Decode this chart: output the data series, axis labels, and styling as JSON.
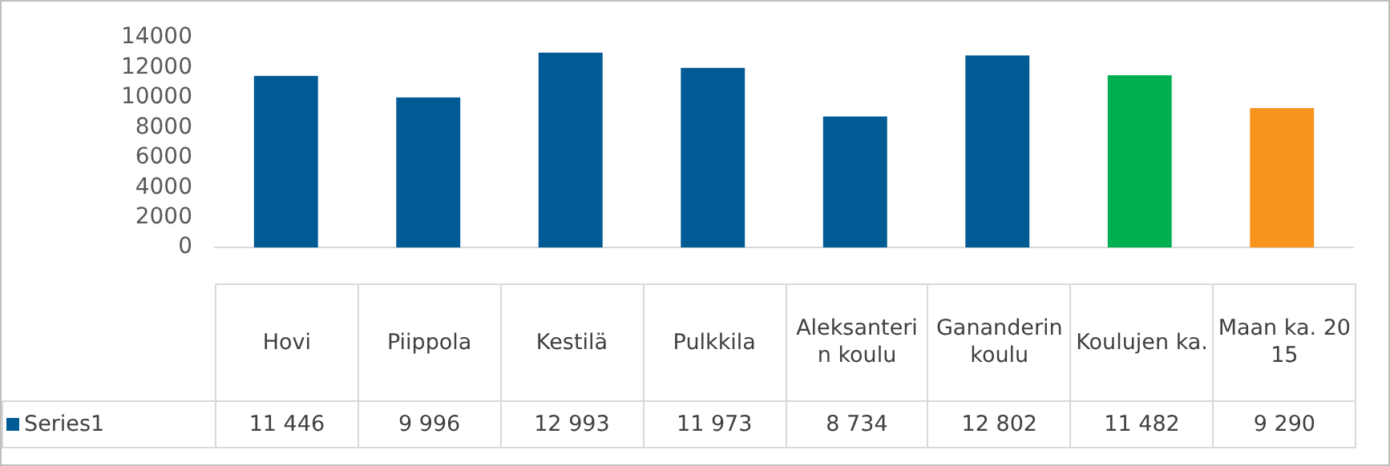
{
  "chart_data": {
    "type": "bar",
    "categories": [
      "Hovi",
      "Piippola",
      "Kestilä",
      "Pulkkila",
      "Aleksanterin koulu",
      "Gananderin koulu",
      "Koulujen ka.",
      "Maan ka. 2015"
    ],
    "series": [
      {
        "name": "Series1",
        "color": "#005a94",
        "colors": [
          "#005a94",
          "#005a94",
          "#005a94",
          "#005a94",
          "#005a94",
          "#005a94",
          "#00b050",
          "#f7941d"
        ],
        "values": [
          11446,
          9996,
          12993,
          11973,
          8734,
          12802,
          11482,
          9290
        ],
        "value_labels": [
          "11 446",
          "9 996",
          "12 993",
          "11 973",
          "8 734",
          "12 802",
          "11 482",
          "9 290"
        ]
      }
    ],
    "ylim": [
      0,
      14000
    ],
    "yticks": [
      0,
      2000,
      4000,
      6000,
      8000,
      10000,
      12000,
      14000
    ],
    "grid": false
  }
}
